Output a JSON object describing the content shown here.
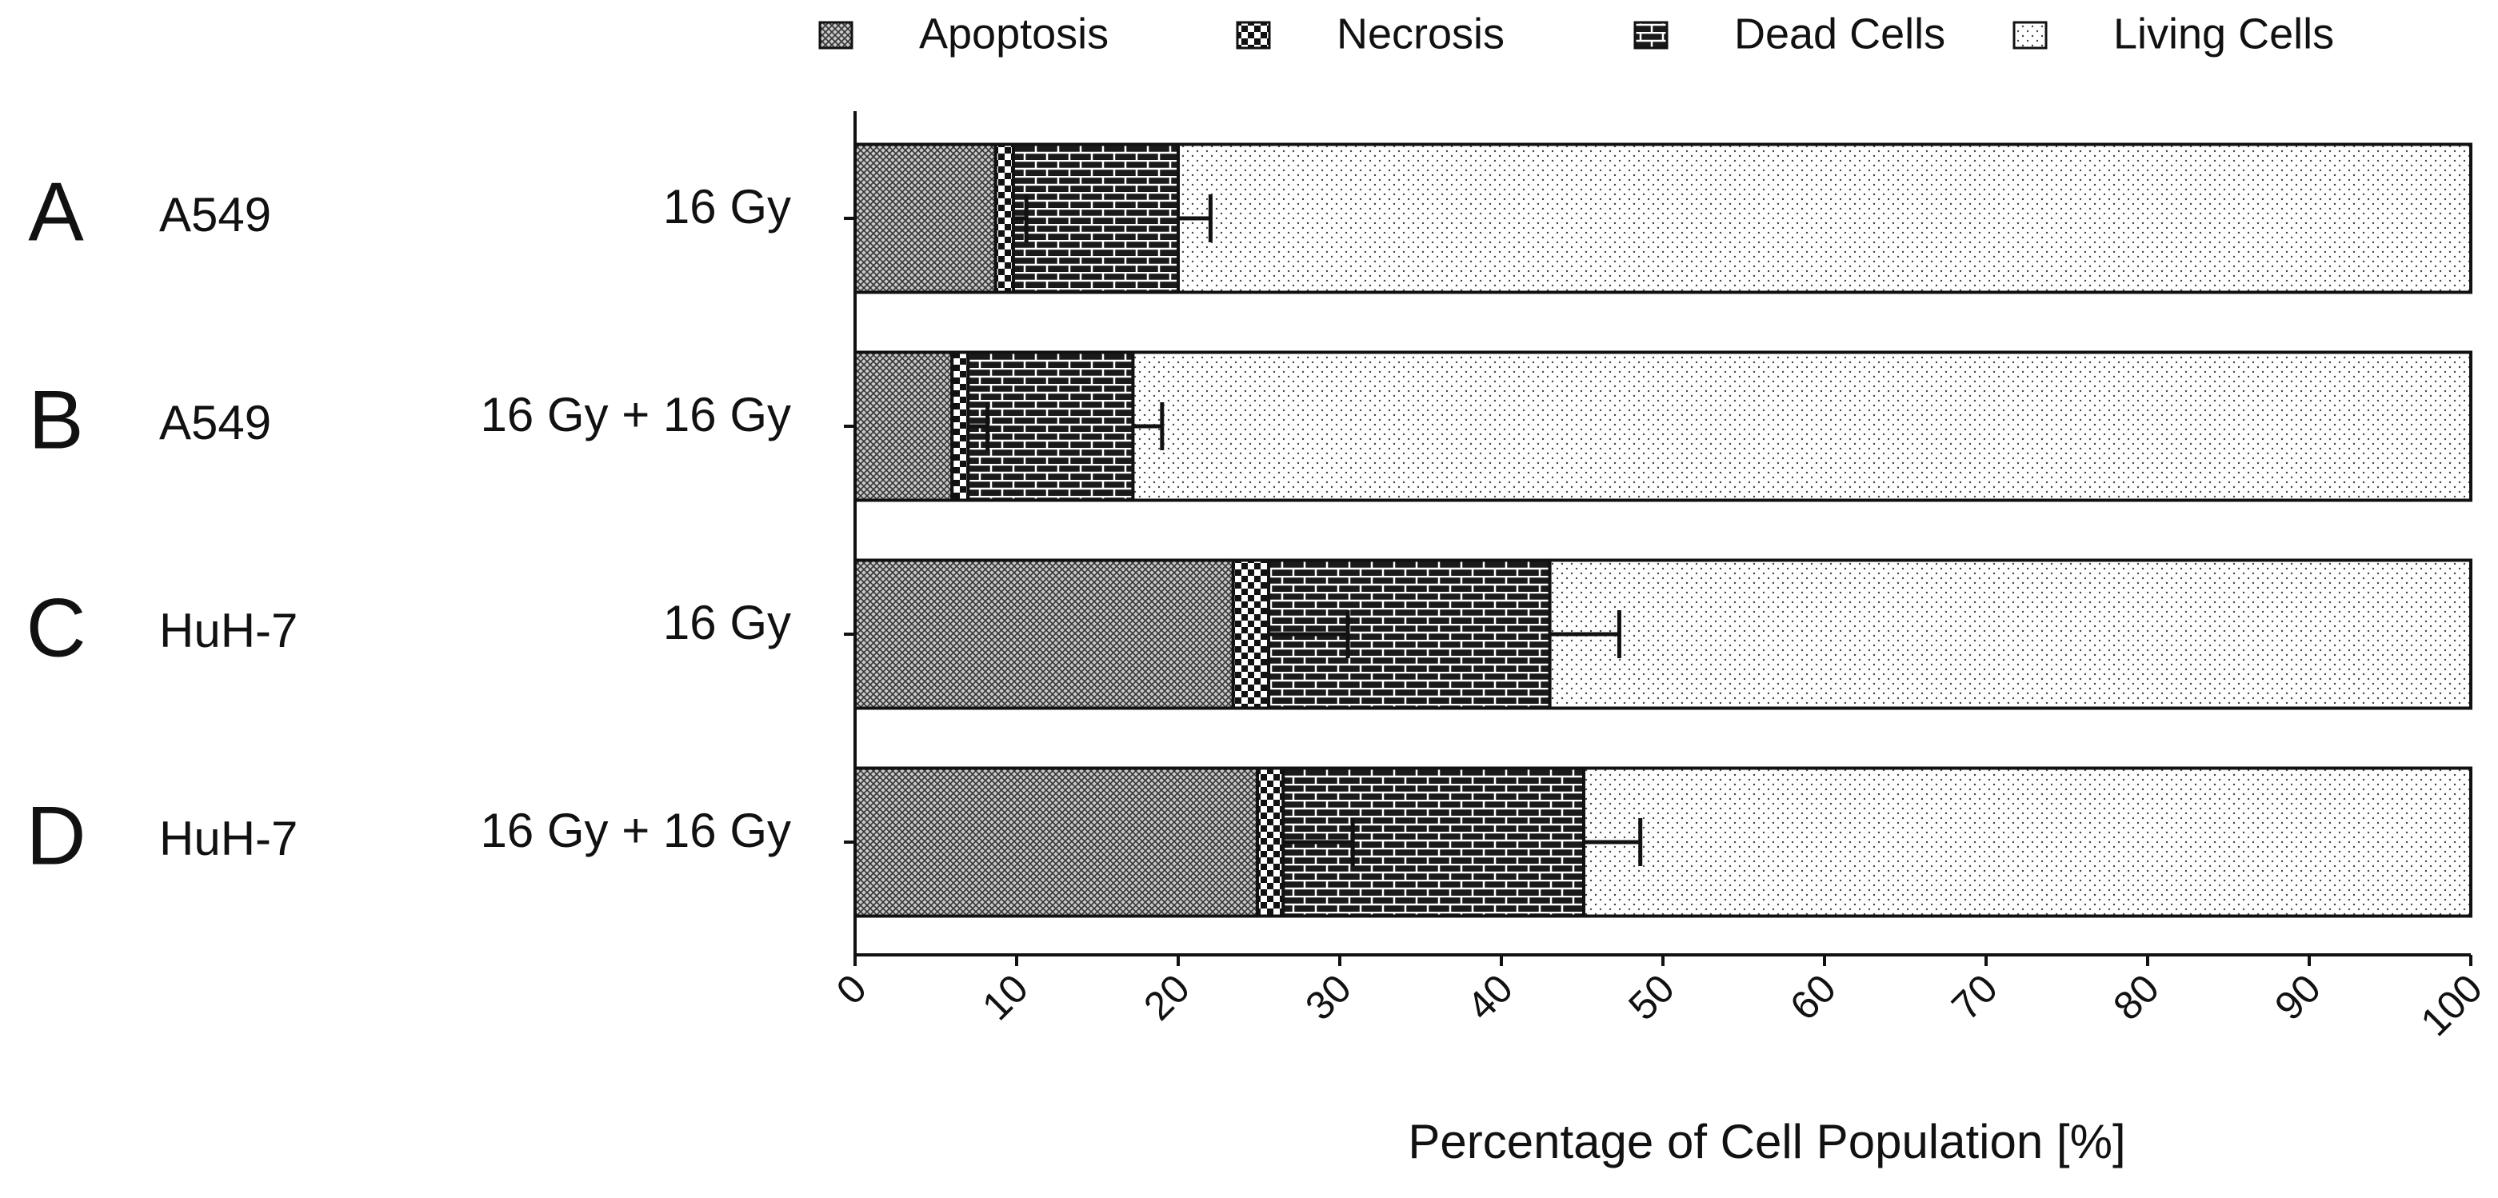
{
  "chart_data": {
    "type": "stacked-bar-horizontal",
    "row_labels": [
      "A",
      "B",
      "C",
      "D"
    ],
    "cell_lines": [
      "A549",
      "A549",
      "HuH-7",
      "HuH-7"
    ],
    "categories": [
      "16 Gy",
      "16 Gy + 16 Gy",
      "16 Gy",
      "16 Gy + 16 Gy"
    ],
    "series": [
      {
        "name": "Apoptosis",
        "values": [
          8.7,
          6.0,
          23.4,
          24.9
        ]
      },
      {
        "name": "Necrosis",
        "values": [
          1.1,
          1.0,
          2.2,
          1.6
        ],
        "errors": [
          0.8,
          1.2,
          4.9,
          4.3
        ]
      },
      {
        "name": "Dead Cells",
        "values": [
          10.2,
          10.2,
          17.4,
          18.6
        ],
        "errors": [
          2.0,
          1.8,
          4.3,
          3.5
        ]
      },
      {
        "name": "Living Cells",
        "values": [
          80.0,
          82.8,
          57.0,
          54.9
        ]
      }
    ],
    "x_label": "Percentage of Cell Population [%]",
    "xlim": [
      0,
      100
    ],
    "xticks": [
      0,
      10,
      20,
      30,
      40,
      50,
      60,
      70,
      80,
      90,
      100
    ],
    "legend": "top"
  }
}
